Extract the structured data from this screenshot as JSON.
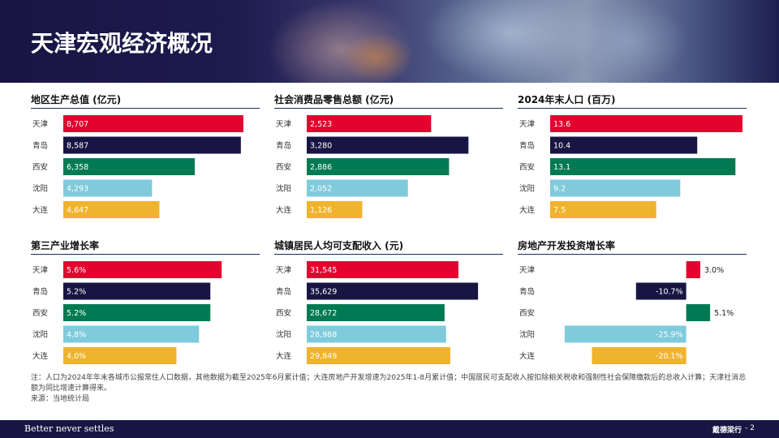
{
  "page_title": "天津宏观经济概况",
  "chart_data": [
    {
      "type": "bar",
      "title": "地区生产总值 (亿元)",
      "categories": [
        "天津",
        "青岛",
        "西安",
        "沈阳",
        "大连"
      ],
      "values": [
        8707,
        8587,
        6358,
        4293,
        4647
      ],
      "labels": [
        "8,707",
        "8,587",
        "6,358",
        "4,293",
        "4,647"
      ],
      "xlim": [
        0,
        9300
      ]
    },
    {
      "type": "bar",
      "title": "社会消费品零售总额 (亿元)",
      "categories": [
        "天津",
        "青岛",
        "西安",
        "沈阳",
        "大连"
      ],
      "values": [
        2523,
        3280,
        2886,
        2052,
        1126
      ],
      "labels": [
        "2,523",
        "3,280",
        "2,886",
        "2,052",
        "1,126"
      ],
      "xlim": [
        0,
        3900
      ]
    },
    {
      "type": "bar",
      "title": "2024年末人口 (百万)",
      "categories": [
        "天津",
        "青岛",
        "西安",
        "沈阳",
        "大连"
      ],
      "values": [
        13.6,
        10.4,
        13.1,
        9.2,
        7.5
      ],
      "labels": [
        "13.6",
        "10.4",
        "13.1",
        "9.2",
        "7.5"
      ],
      "xlim": [
        0,
        13.6
      ]
    },
    {
      "type": "bar",
      "title": "第三产业增长率",
      "categories": [
        "天津",
        "青岛",
        "西安",
        "沈阳",
        "大连"
      ],
      "values": [
        5.6,
        5.2,
        5.2,
        4.8,
        4.0
      ],
      "labels": [
        "5.6%",
        "5.2%",
        "5.2%",
        "4.8%",
        "4.0%"
      ],
      "xlim": [
        0,
        6.8
      ]
    },
    {
      "type": "bar",
      "title": "城镇居民人均可支配收入 (元)",
      "categories": [
        "天津",
        "青岛",
        "西安",
        "沈阳",
        "大连"
      ],
      "values": [
        31545,
        35629,
        28672,
        28988,
        29849
      ],
      "labels": [
        "31,545",
        "35,629",
        "28,672",
        "28,988",
        "29,849"
      ],
      "xlim": [
        0,
        40000
      ]
    },
    {
      "type": "bar",
      "title": "房地产开发投资增长率",
      "categories": [
        "天津",
        "青岛",
        "西安",
        "沈阳",
        "大连"
      ],
      "values": [
        3.0,
        -10.7,
        5.1,
        -25.9,
        -20.1
      ],
      "labels": [
        "3.0%",
        "-10.7%",
        "5.1%",
        "-25.9%",
        "-20.1%"
      ],
      "xlim": [
        -29,
        12
      ]
    }
  ],
  "colors": [
    "#e4032e",
    "#191543",
    "#007a53",
    "#7fcbdc",
    "#f0b32d"
  ],
  "notes": {
    "note": "注：人口为2024年年末各城市公报常住人口数据，其他数据为截至2025年6月累计值；大连房地产开发增速为2025年1-8月累计值；中国居民可支配收入按扣除相关税收和强制性社会保障缴款后的总收入计算；天津社消总额为同比增速计算得来。",
    "source": "来源：当地统计局"
  },
  "footer": {
    "tagline": "Better never settles",
    "brand": "戴德梁行",
    "page": "- 2"
  }
}
